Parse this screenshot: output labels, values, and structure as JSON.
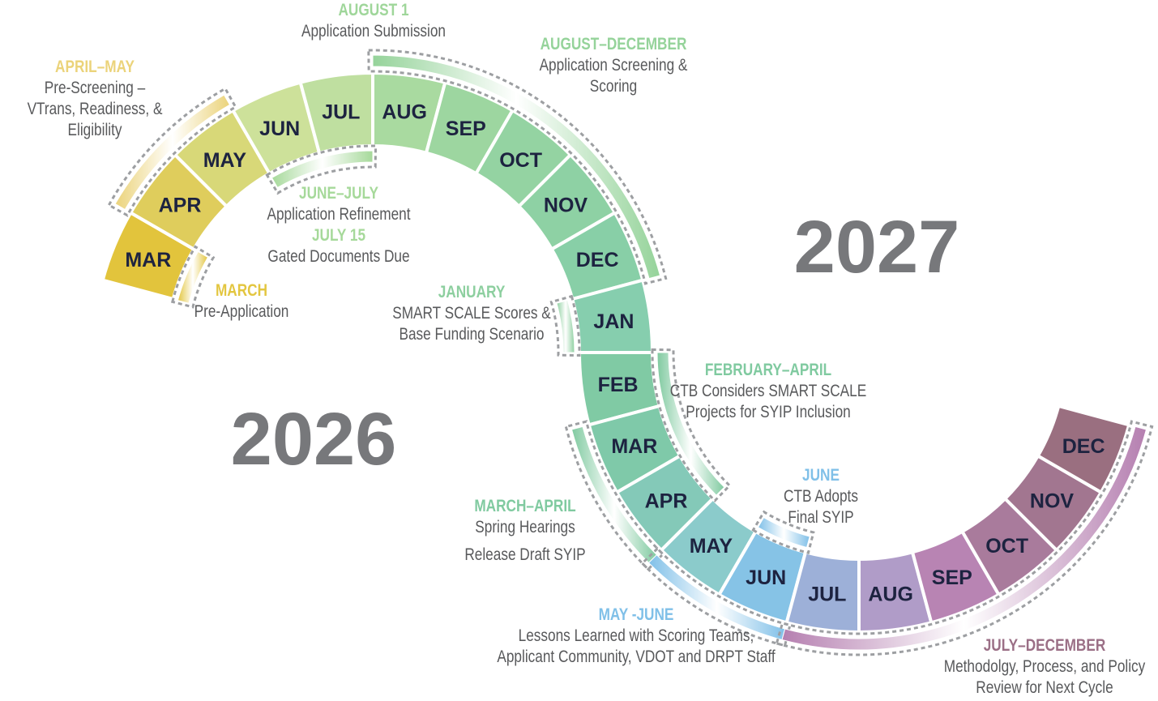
{
  "years": [
    {
      "label": "2026",
      "color": "#77787b"
    },
    {
      "label": "2027",
      "color": "#77787b"
    }
  ],
  "months": [
    {
      "label": "MAR",
      "year": "2026",
      "color": "#e2c43c"
    },
    {
      "label": "APR",
      "year": "2026",
      "color": "#dfcd5c"
    },
    {
      "label": "MAY",
      "year": "2026",
      "color": "#d8d878"
    },
    {
      "label": "JUN",
      "year": "2026",
      "color": "#cde19a"
    },
    {
      "label": "JUL",
      "year": "2026",
      "color": "#bfdfa0"
    },
    {
      "label": "AUG",
      "year": "2026",
      "color": "#a9daa0"
    },
    {
      "label": "SEP",
      "year": "2026",
      "color": "#9dd6a0"
    },
    {
      "label": "OCT",
      "year": "2026",
      "color": "#94d3a2"
    },
    {
      "label": "NOV",
      "year": "2026",
      "color": "#8ed1a4"
    },
    {
      "label": "DEC",
      "year": "2026",
      "color": "#88cfa7"
    },
    {
      "label": "JAN",
      "year": "2027",
      "color": "#86ceae"
    },
    {
      "label": "FEB",
      "year": "2027",
      "color": "#80caa4"
    },
    {
      "label": "MAR",
      "year": "2027",
      "color": "#7fc9a9"
    },
    {
      "label": "APR",
      "year": "2027",
      "color": "#84c9b8"
    },
    {
      "label": "MAY",
      "year": "2027",
      "color": "#8bcbcb"
    },
    {
      "label": "JUN",
      "year": "2027",
      "color": "#86c3e6"
    },
    {
      "label": "JUL",
      "year": "2027",
      "color": "#9db0d8"
    },
    {
      "label": "AUG",
      "year": "2027",
      "color": "#b09cc8"
    },
    {
      "label": "SEP",
      "year": "2027",
      "color": "#b884b3"
    },
    {
      "label": "OCT",
      "year": "2027",
      "color": "#a97b9c"
    },
    {
      "label": "NOV",
      "year": "2027",
      "color": "#a27690"
    },
    {
      "label": "DEC",
      "year": "2027",
      "color": "#9a6f80"
    }
  ],
  "phases": [
    {
      "id": "march",
      "title": "MARCH",
      "lines": [
        "Pre-Application"
      ],
      "color": "#e3c640"
    },
    {
      "id": "april-may",
      "title": "APRIL–MAY",
      "lines": [
        "Pre-Screening –",
        "VTrans, Readiness, &",
        "Eligibility"
      ],
      "color": "#ebd37a"
    },
    {
      "id": "june-july",
      "title": "JUNE–JULY",
      "lines": [
        "Application Refinement"
      ],
      "color": "#a6d99a"
    },
    {
      "id": "july-15",
      "title": "JULY 15",
      "lines": [
        "Gated Documents Due"
      ],
      "color": "#a6d99a"
    },
    {
      "id": "august-1",
      "title": "AUGUST 1",
      "lines": [
        "Application Submission"
      ],
      "color": "#9fd69a"
    },
    {
      "id": "august-december",
      "title": "AUGUST–DECEMBER",
      "lines": [
        "Application Screening &",
        "Scoring"
      ],
      "color": "#95d39a"
    },
    {
      "id": "january",
      "title": "JANUARY",
      "lines": [
        "SMART SCALE Scores &",
        "Base Funding Scenario"
      ],
      "color": "#8dcf9f"
    },
    {
      "id": "february-april",
      "title": "FEBRUARY–APRIL",
      "lines": [
        "CTB Considers SMART SCALE",
        "Projects for SYIP Inclusion"
      ],
      "color": "#80caa0"
    },
    {
      "id": "march-april",
      "title": "MARCH–APRIL",
      "lines": [
        "Spring Hearings",
        "Release Draft SYIP"
      ],
      "color": "#80caa0"
    },
    {
      "id": "june",
      "title": "JUNE",
      "lines": [
        "CTB Adopts",
        "Final SYIP"
      ],
      "color": "#80c0e8"
    },
    {
      "id": "may-june",
      "title": "MAY -JUNE",
      "lines": [
        "Lessons Learned with Scoring Teams,",
        "Applicant Community, VDOT and DRPT Staff"
      ],
      "color": "#80c0e8"
    },
    {
      "id": "july-december",
      "title": "JULY–DECEMBER",
      "lines": [
        "Methodolgy, Process, and Policy",
        "Review for Next Cycle"
      ],
      "color": "#9b6f86"
    }
  ]
}
